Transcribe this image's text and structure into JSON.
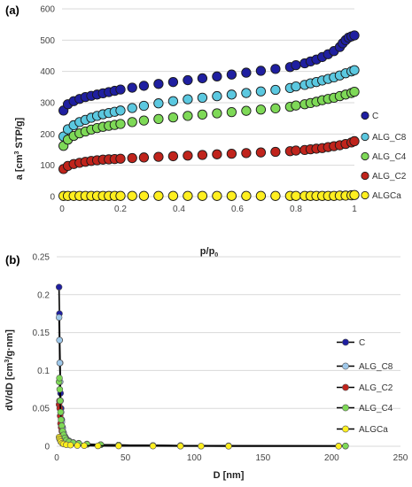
{
  "chart_data": [
    {
      "type": "scatter",
      "panel_label": "(a)",
      "xlabel": "p/p",
      "xlabel_subscript": "0",
      "ylabel_parts": [
        "a [cm",
        "3",
        " STP/g]"
      ],
      "xlim": [
        0,
        1
      ],
      "ylim": [
        0,
        600
      ],
      "x_ticks": [
        "0",
        "0.2",
        "0.4",
        "0.6",
        "0.8",
        "1"
      ],
      "y_ticks": [
        "0",
        "100",
        "200",
        "300",
        "400",
        "500",
        "600"
      ],
      "legend_position": "right",
      "series": [
        {
          "name": "C",
          "color": "#1f1fa0",
          "x": [
            0.005,
            0.02,
            0.04,
            0.06,
            0.08,
            0.1,
            0.12,
            0.14,
            0.16,
            0.18,
            0.2,
            0.24,
            0.28,
            0.33,
            0.38,
            0.43,
            0.48,
            0.53,
            0.58,
            0.63,
            0.68,
            0.73,
            0.78,
            0.8,
            0.83,
            0.85,
            0.87,
            0.89,
            0.91,
            0.93,
            0.95,
            0.96,
            0.97,
            0.98,
            0.99,
            1.0
          ],
          "y": [
            275,
            295,
            305,
            312,
            318,
            322,
            326,
            330,
            334,
            338,
            342,
            348,
            354,
            360,
            366,
            372,
            378,
            384,
            390,
            396,
            402,
            408,
            414,
            420,
            426,
            432,
            438,
            446,
            455,
            465,
            478,
            490,
            500,
            508,
            512,
            515
          ]
        },
        {
          "name": "ALG_C8",
          "color": "#5bc8e0",
          "x": [
            0.005,
            0.02,
            0.04,
            0.06,
            0.08,
            0.1,
            0.12,
            0.14,
            0.16,
            0.18,
            0.2,
            0.24,
            0.28,
            0.33,
            0.38,
            0.43,
            0.48,
            0.53,
            0.58,
            0.63,
            0.68,
            0.73,
            0.78,
            0.8,
            0.83,
            0.85,
            0.87,
            0.89,
            0.91,
            0.93,
            0.95,
            0.97,
            0.99,
            1.0
          ],
          "y": [
            192,
            215,
            228,
            238,
            245,
            252,
            258,
            263,
            267,
            271,
            275,
            283,
            290,
            298,
            305,
            311,
            316,
            321,
            326,
            331,
            336,
            341,
            347,
            352,
            357,
            362,
            366,
            371,
            376,
            381,
            387,
            394,
            400,
            404
          ]
        },
        {
          "name": "ALG_C4",
          "color": "#7ed957",
          "x": [
            0.005,
            0.02,
            0.04,
            0.06,
            0.08,
            0.1,
            0.12,
            0.14,
            0.16,
            0.18,
            0.2,
            0.24,
            0.28,
            0.33,
            0.38,
            0.43,
            0.48,
            0.53,
            0.58,
            0.63,
            0.68,
            0.73,
            0.78,
            0.8,
            0.83,
            0.85,
            0.87,
            0.89,
            0.91,
            0.93,
            0.95,
            0.97,
            0.99,
            1.0
          ],
          "y": [
            162,
            182,
            194,
            202,
            208,
            214,
            219,
            223,
            226,
            229,
            232,
            238,
            243,
            248,
            253,
            258,
            262,
            266,
            270,
            274,
            278,
            282,
            287,
            291,
            295,
            299,
            303,
            308,
            312,
            316,
            321,
            326,
            331,
            335
          ]
        },
        {
          "name": "ALG_C2",
          "color": "#c0241c",
          "x": [
            0.005,
            0.02,
            0.04,
            0.06,
            0.08,
            0.1,
            0.12,
            0.14,
            0.16,
            0.18,
            0.2,
            0.24,
            0.28,
            0.33,
            0.38,
            0.43,
            0.48,
            0.53,
            0.58,
            0.63,
            0.68,
            0.73,
            0.78,
            0.8,
            0.83,
            0.85,
            0.87,
            0.89,
            0.91,
            0.93,
            0.95,
            0.97,
            0.99,
            1.0
          ],
          "y": [
            88,
            98,
            104,
            108,
            111,
            114,
            116,
            118,
            119,
            120,
            121,
            123,
            125,
            127,
            129,
            131,
            133,
            135,
            137,
            139,
            141,
            143,
            145,
            147,
            149,
            151,
            153,
            155,
            158,
            161,
            164,
            168,
            173,
            177
          ]
        },
        {
          "name": "ALGCa",
          "color": "#ffef1f",
          "x": [
            0.005,
            0.02,
            0.04,
            0.06,
            0.08,
            0.1,
            0.12,
            0.14,
            0.16,
            0.18,
            0.2,
            0.24,
            0.28,
            0.33,
            0.38,
            0.43,
            0.48,
            0.53,
            0.58,
            0.63,
            0.68,
            0.73,
            0.78,
            0.8,
            0.83,
            0.85,
            0.87,
            0.89,
            0.91,
            0.93,
            0.95,
            0.97,
            0.99,
            1.0
          ],
          "y": [
            2,
            2,
            2,
            2,
            2,
            2,
            2,
            2,
            2,
            2,
            2,
            2,
            2,
            2,
            2,
            2,
            2,
            2,
            2,
            2,
            2,
            2,
            2,
            2,
            2,
            2,
            2,
            2,
            2,
            2,
            3,
            3,
            4,
            5
          ]
        }
      ]
    },
    {
      "type": "line",
      "panel_label": "(b)",
      "xlabel": "D [nm]",
      "ylabel_parts": [
        "dV/dD [cm",
        "3",
        "/g·nm]"
      ],
      "xlim": [
        0,
        250
      ],
      "ylim": [
        0,
        0.25
      ],
      "x_ticks": [
        "0",
        "50",
        "100",
        "150",
        "200",
        "250"
      ],
      "y_ticks": [
        "0",
        "0.05",
        "0.1",
        "0.15",
        "0.2",
        "0.25"
      ],
      "legend_position": "right",
      "series": [
        {
          "name": "C",
          "color": "#1f1fa0",
          "x": [
            1.7,
            2.0,
            2.2,
            2.5,
            2.8,
            3.2,
            3.7,
            4.3,
            5,
            6,
            7,
            9,
            12,
            16,
            22,
            32,
            45,
            70,
            90,
            125,
            210
          ],
          "y": [
            0.21,
            0.175,
            0.14,
            0.11,
            0.07,
            0.05,
            0.035,
            0.025,
            0.018,
            0.013,
            0.01,
            0.007,
            0.005,
            0.004,
            0.003,
            0.002,
            0.0015,
            0.001,
            0.0008,
            0.0005,
            0.0003
          ]
        },
        {
          "name": "ALG_C8",
          "color": "#9fc8ea",
          "x": [
            1.7,
            2.0,
            2.2,
            2.5,
            2.8,
            3.2,
            3.7,
            4.3,
            5,
            6,
            7,
            9,
            12,
            16,
            22,
            32,
            45,
            70,
            90,
            125,
            205
          ],
          "y": [
            0.17,
            0.14,
            0.11,
            0.085,
            0.06,
            0.045,
            0.032,
            0.023,
            0.017,
            0.012,
            0.009,
            0.006,
            0.0045,
            0.0035,
            0.0025,
            0.002,
            0.0015,
            0.001,
            0.0008,
            0.0005,
            0.0003
          ]
        },
        {
          "name": "ALG_C2",
          "color": "#c0241c",
          "x": [
            1.7,
            2.0,
            2.2,
            2.5,
            2.8,
            3.2,
            3.7,
            4.3,
            5,
            6,
            7,
            9,
            12,
            16,
            22,
            32,
            45,
            70,
            90,
            125,
            210
          ],
          "y": [
            0.055,
            0.06,
            0.05,
            0.04,
            0.03,
            0.025,
            0.02,
            0.016,
            0.012,
            0.009,
            0.007,
            0.005,
            0.004,
            0.003,
            0.0025,
            0.002,
            0.0015,
            0.001,
            0.0008,
            0.0005,
            0.0003
          ]
        },
        {
          "name": "ALG_C4",
          "color": "#7ed957",
          "x": [
            1.7,
            2.0,
            2.2,
            2.5,
            2.8,
            3.2,
            3.7,
            4.3,
            5,
            6,
            7,
            9,
            12,
            16,
            22,
            32,
            45,
            70,
            90,
            125,
            210
          ],
          "y": [
            0.085,
            0.09,
            0.075,
            0.06,
            0.045,
            0.035,
            0.027,
            0.02,
            0.015,
            0.011,
            0.008,
            0.006,
            0.0045,
            0.0035,
            0.0025,
            0.002,
            0.0015,
            0.001,
            0.0008,
            0.0005,
            0.0003
          ]
        },
        {
          "name": "ALGCa",
          "color": "#ffef1f",
          "x": [
            1.7,
            2.0,
            2.5,
            3,
            4,
            5,
            7,
            10,
            15,
            20,
            30,
            45,
            70,
            90,
            105,
            125,
            205
          ],
          "y": [
            0.012,
            0.01,
            0.008,
            0.006,
            0.004,
            0.003,
            0.002,
            0.0015,
            0.001,
            0.0008,
            0.0005,
            0.0004,
            0.0003,
            0.0002,
            0.0002,
            0.0001,
            0.0001
          ]
        }
      ]
    }
  ]
}
